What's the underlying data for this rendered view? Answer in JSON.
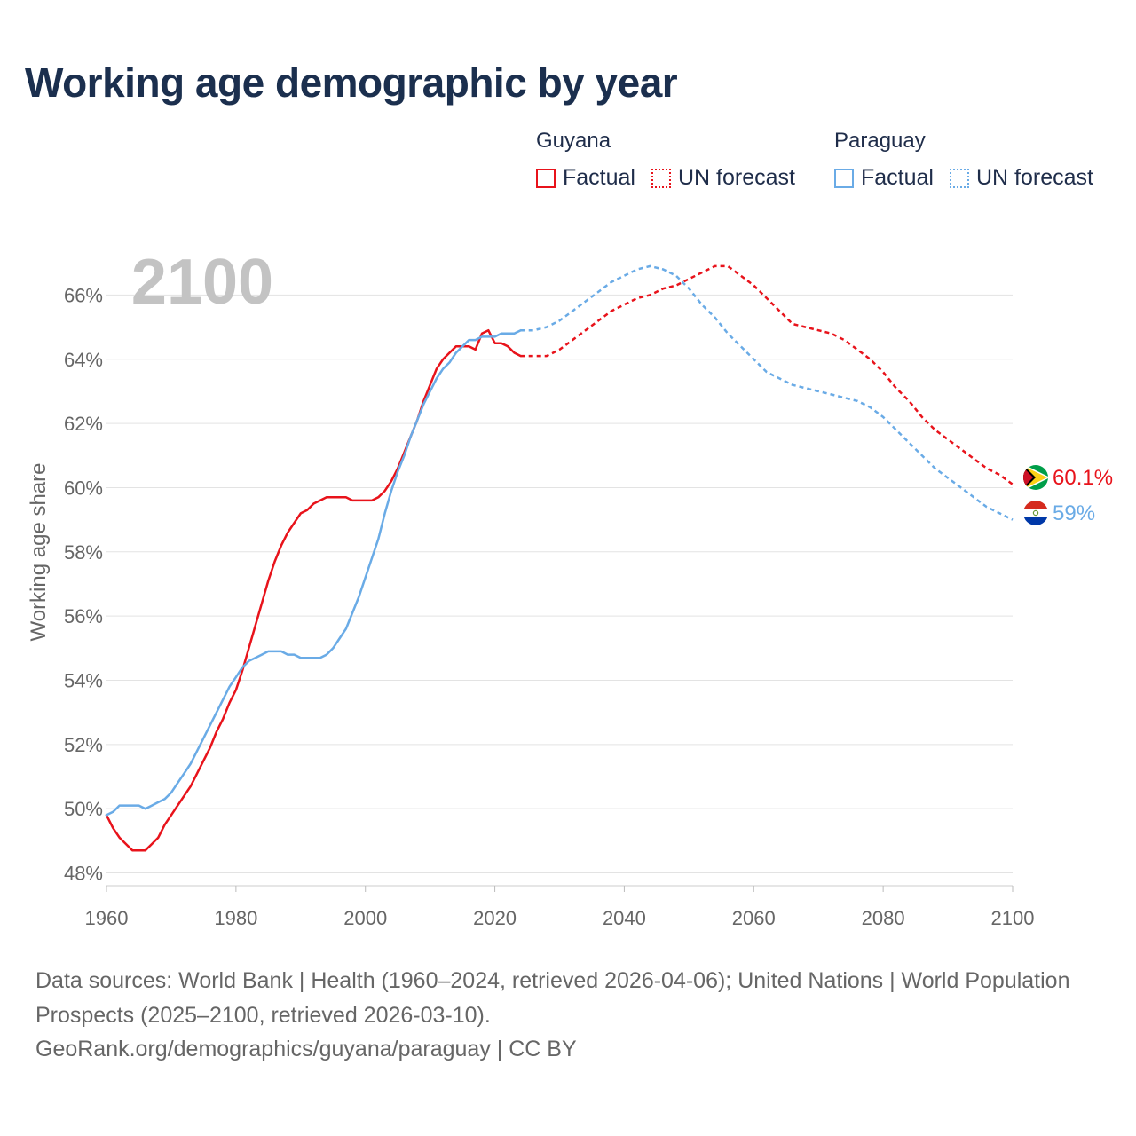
{
  "title": "Working age demographic by year",
  "legend": {
    "groups": [
      {
        "name": "Guyana",
        "color": "#e8131b",
        "factual_label": "Factual",
        "forecast_label": "UN forecast"
      },
      {
        "name": "Paraguay",
        "color": "#6aabe6",
        "factual_label": "Factual",
        "forecast_label": "UN forecast"
      }
    ]
  },
  "year_watermark": "2100",
  "footer": {
    "sources": "Data sources: World Bank | Health (1960–2024, retrieved 2026-04-06); United Nations | World Population Prospects (2025–2100, retrieved 2026-03-10).",
    "credit": "GeoRank.org/demographics/guyana/paraguay | CC BY"
  },
  "chart_data": {
    "type": "line",
    "title": "Working age demographic by year",
    "xlabel": "",
    "ylabel": "Working age share",
    "xlim": [
      1960,
      2100
    ],
    "ylim": [
      47.6,
      67.2
    ],
    "x_ticks": [
      1960,
      1980,
      2000,
      2020,
      2040,
      2060,
      2080,
      2100
    ],
    "y_ticks": [
      48,
      50,
      52,
      54,
      56,
      58,
      60,
      62,
      64,
      66
    ],
    "y_tick_suffix": "%",
    "grid": true,
    "series": [
      {
        "name": "Guyana",
        "segment": "Factual",
        "style": "solid",
        "color": "#e8131b",
        "points": [
          [
            1960,
            49.8
          ],
          [
            1961,
            49.4
          ],
          [
            1962,
            49.1
          ],
          [
            1963,
            48.9
          ],
          [
            1964,
            48.7
          ],
          [
            1965,
            48.7
          ],
          [
            1966,
            48.7
          ],
          [
            1967,
            48.9
          ],
          [
            1968,
            49.1
          ],
          [
            1969,
            49.5
          ],
          [
            1970,
            49.8
          ],
          [
            1971,
            50.1
          ],
          [
            1972,
            50.4
          ],
          [
            1973,
            50.7
          ],
          [
            1974,
            51.1
          ],
          [
            1975,
            51.5
          ],
          [
            1976,
            51.9
          ],
          [
            1977,
            52.4
          ],
          [
            1978,
            52.8
          ],
          [
            1979,
            53.3
          ],
          [
            1980,
            53.7
          ],
          [
            1981,
            54.3
          ],
          [
            1982,
            55.0
          ],
          [
            1983,
            55.7
          ],
          [
            1984,
            56.4
          ],
          [
            1985,
            57.1
          ],
          [
            1986,
            57.7
          ],
          [
            1987,
            58.2
          ],
          [
            1988,
            58.6
          ],
          [
            1989,
            58.9
          ],
          [
            1990,
            59.2
          ],
          [
            1991,
            59.3
          ],
          [
            1992,
            59.5
          ],
          [
            1993,
            59.6
          ],
          [
            1994,
            59.7
          ],
          [
            1995,
            59.7
          ],
          [
            1996,
            59.7
          ],
          [
            1997,
            59.7
          ],
          [
            1998,
            59.6
          ],
          [
            1999,
            59.6
          ],
          [
            2000,
            59.6
          ],
          [
            2001,
            59.6
          ],
          [
            2002,
            59.7
          ],
          [
            2003,
            59.9
          ],
          [
            2004,
            60.2
          ],
          [
            2005,
            60.6
          ],
          [
            2006,
            61.1
          ],
          [
            2007,
            61.6
          ],
          [
            2008,
            62.1
          ],
          [
            2009,
            62.7
          ],
          [
            2010,
            63.2
          ],
          [
            2011,
            63.7
          ],
          [
            2012,
            64.0
          ],
          [
            2013,
            64.2
          ],
          [
            2014,
            64.4
          ],
          [
            2015,
            64.4
          ],
          [
            2016,
            64.4
          ],
          [
            2017,
            64.3
          ],
          [
            2018,
            64.8
          ],
          [
            2019,
            64.9
          ],
          [
            2020,
            64.5
          ],
          [
            2021,
            64.5
          ],
          [
            2022,
            64.4
          ],
          [
            2023,
            64.2
          ],
          [
            2024,
            64.1
          ]
        ]
      },
      {
        "name": "Guyana",
        "segment": "UN forecast",
        "style": "dashed",
        "color": "#e8131b",
        "points": [
          [
            2024,
            64.1
          ],
          [
            2026,
            64.1
          ],
          [
            2028,
            64.1
          ],
          [
            2030,
            64.3
          ],
          [
            2032,
            64.6
          ],
          [
            2034,
            64.9
          ],
          [
            2036,
            65.2
          ],
          [
            2038,
            65.5
          ],
          [
            2040,
            65.7
          ],
          [
            2042,
            65.9
          ],
          [
            2044,
            66.0
          ],
          [
            2046,
            66.2
          ],
          [
            2048,
            66.3
          ],
          [
            2050,
            66.5
          ],
          [
            2052,
            66.7
          ],
          [
            2054,
            66.9
          ],
          [
            2056,
            66.9
          ],
          [
            2058,
            66.6
          ],
          [
            2060,
            66.3
          ],
          [
            2062,
            65.9
          ],
          [
            2064,
            65.5
          ],
          [
            2066,
            65.1
          ],
          [
            2068,
            65.0
          ],
          [
            2070,
            64.9
          ],
          [
            2072,
            64.8
          ],
          [
            2074,
            64.6
          ],
          [
            2076,
            64.3
          ],
          [
            2078,
            64.0
          ],
          [
            2080,
            63.6
          ],
          [
            2082,
            63.1
          ],
          [
            2084,
            62.7
          ],
          [
            2086,
            62.2
          ],
          [
            2088,
            61.8
          ],
          [
            2090,
            61.5
          ],
          [
            2092,
            61.2
          ],
          [
            2094,
            60.9
          ],
          [
            2096,
            60.6
          ],
          [
            2098,
            60.4
          ],
          [
            2100,
            60.1
          ]
        ]
      },
      {
        "name": "Paraguay",
        "segment": "Factual",
        "style": "solid",
        "color": "#6aabe6",
        "points": [
          [
            1960,
            49.8
          ],
          [
            1961,
            49.9
          ],
          [
            1962,
            50.1
          ],
          [
            1963,
            50.1
          ],
          [
            1964,
            50.1
          ],
          [
            1965,
            50.1
          ],
          [
            1966,
            50.0
          ],
          [
            1967,
            50.1
          ],
          [
            1968,
            50.2
          ],
          [
            1969,
            50.3
          ],
          [
            1970,
            50.5
          ],
          [
            1971,
            50.8
          ],
          [
            1972,
            51.1
          ],
          [
            1973,
            51.4
          ],
          [
            1974,
            51.8
          ],
          [
            1975,
            52.2
          ],
          [
            1976,
            52.6
          ],
          [
            1977,
            53.0
          ],
          [
            1978,
            53.4
          ],
          [
            1979,
            53.8
          ],
          [
            1980,
            54.1
          ],
          [
            1981,
            54.4
          ],
          [
            1982,
            54.6
          ],
          [
            1983,
            54.7
          ],
          [
            1984,
            54.8
          ],
          [
            1985,
            54.9
          ],
          [
            1986,
            54.9
          ],
          [
            1987,
            54.9
          ],
          [
            1988,
            54.8
          ],
          [
            1989,
            54.8
          ],
          [
            1990,
            54.7
          ],
          [
            1991,
            54.7
          ],
          [
            1992,
            54.7
          ],
          [
            1993,
            54.7
          ],
          [
            1994,
            54.8
          ],
          [
            1995,
            55.0
          ],
          [
            1996,
            55.3
          ],
          [
            1997,
            55.6
          ],
          [
            1998,
            56.1
          ],
          [
            1999,
            56.6
          ],
          [
            2000,
            57.2
          ],
          [
            2001,
            57.8
          ],
          [
            2002,
            58.4
          ],
          [
            2003,
            59.2
          ],
          [
            2004,
            59.9
          ],
          [
            2005,
            60.5
          ],
          [
            2006,
            61.0
          ],
          [
            2007,
            61.6
          ],
          [
            2008,
            62.1
          ],
          [
            2009,
            62.6
          ],
          [
            2010,
            63.0
          ],
          [
            2011,
            63.4
          ],
          [
            2012,
            63.7
          ],
          [
            2013,
            63.9
          ],
          [
            2014,
            64.2
          ],
          [
            2015,
            64.4
          ],
          [
            2016,
            64.6
          ],
          [
            2017,
            64.6
          ],
          [
            2018,
            64.7
          ],
          [
            2019,
            64.7
          ],
          [
            2020,
            64.7
          ],
          [
            2021,
            64.8
          ],
          [
            2022,
            64.8
          ],
          [
            2023,
            64.8
          ],
          [
            2024,
            64.9
          ]
        ]
      },
      {
        "name": "Paraguay",
        "segment": "UN forecast",
        "style": "dashed",
        "color": "#6aabe6",
        "points": [
          [
            2024,
            64.9
          ],
          [
            2026,
            64.9
          ],
          [
            2028,
            65.0
          ],
          [
            2030,
            65.2
          ],
          [
            2032,
            65.5
          ],
          [
            2034,
            65.8
          ],
          [
            2036,
            66.1
          ],
          [
            2038,
            66.4
          ],
          [
            2040,
            66.6
          ],
          [
            2042,
            66.8
          ],
          [
            2044,
            66.9
          ],
          [
            2046,
            66.8
          ],
          [
            2048,
            66.6
          ],
          [
            2050,
            66.2
          ],
          [
            2052,
            65.7
          ],
          [
            2054,
            65.3
          ],
          [
            2056,
            64.8
          ],
          [
            2058,
            64.4
          ],
          [
            2060,
            64.0
          ],
          [
            2062,
            63.6
          ],
          [
            2064,
            63.4
          ],
          [
            2066,
            63.2
          ],
          [
            2068,
            63.1
          ],
          [
            2070,
            63.0
          ],
          [
            2072,
            62.9
          ],
          [
            2074,
            62.8
          ],
          [
            2076,
            62.7
          ],
          [
            2078,
            62.5
          ],
          [
            2080,
            62.2
          ],
          [
            2082,
            61.8
          ],
          [
            2084,
            61.4
          ],
          [
            2086,
            61.0
          ],
          [
            2088,
            60.6
          ],
          [
            2090,
            60.3
          ],
          [
            2092,
            60.0
          ],
          [
            2094,
            59.7
          ],
          [
            2096,
            59.4
          ],
          [
            2098,
            59.2
          ],
          [
            2100,
            59.0
          ]
        ]
      }
    ],
    "end_labels": [
      {
        "name": "Guyana",
        "value": 60.1,
        "label": "60.1%",
        "color": "#e8131b"
      },
      {
        "name": "Paraguay",
        "value": 59.0,
        "label": "59%",
        "color": "#6aabe6"
      }
    ]
  }
}
